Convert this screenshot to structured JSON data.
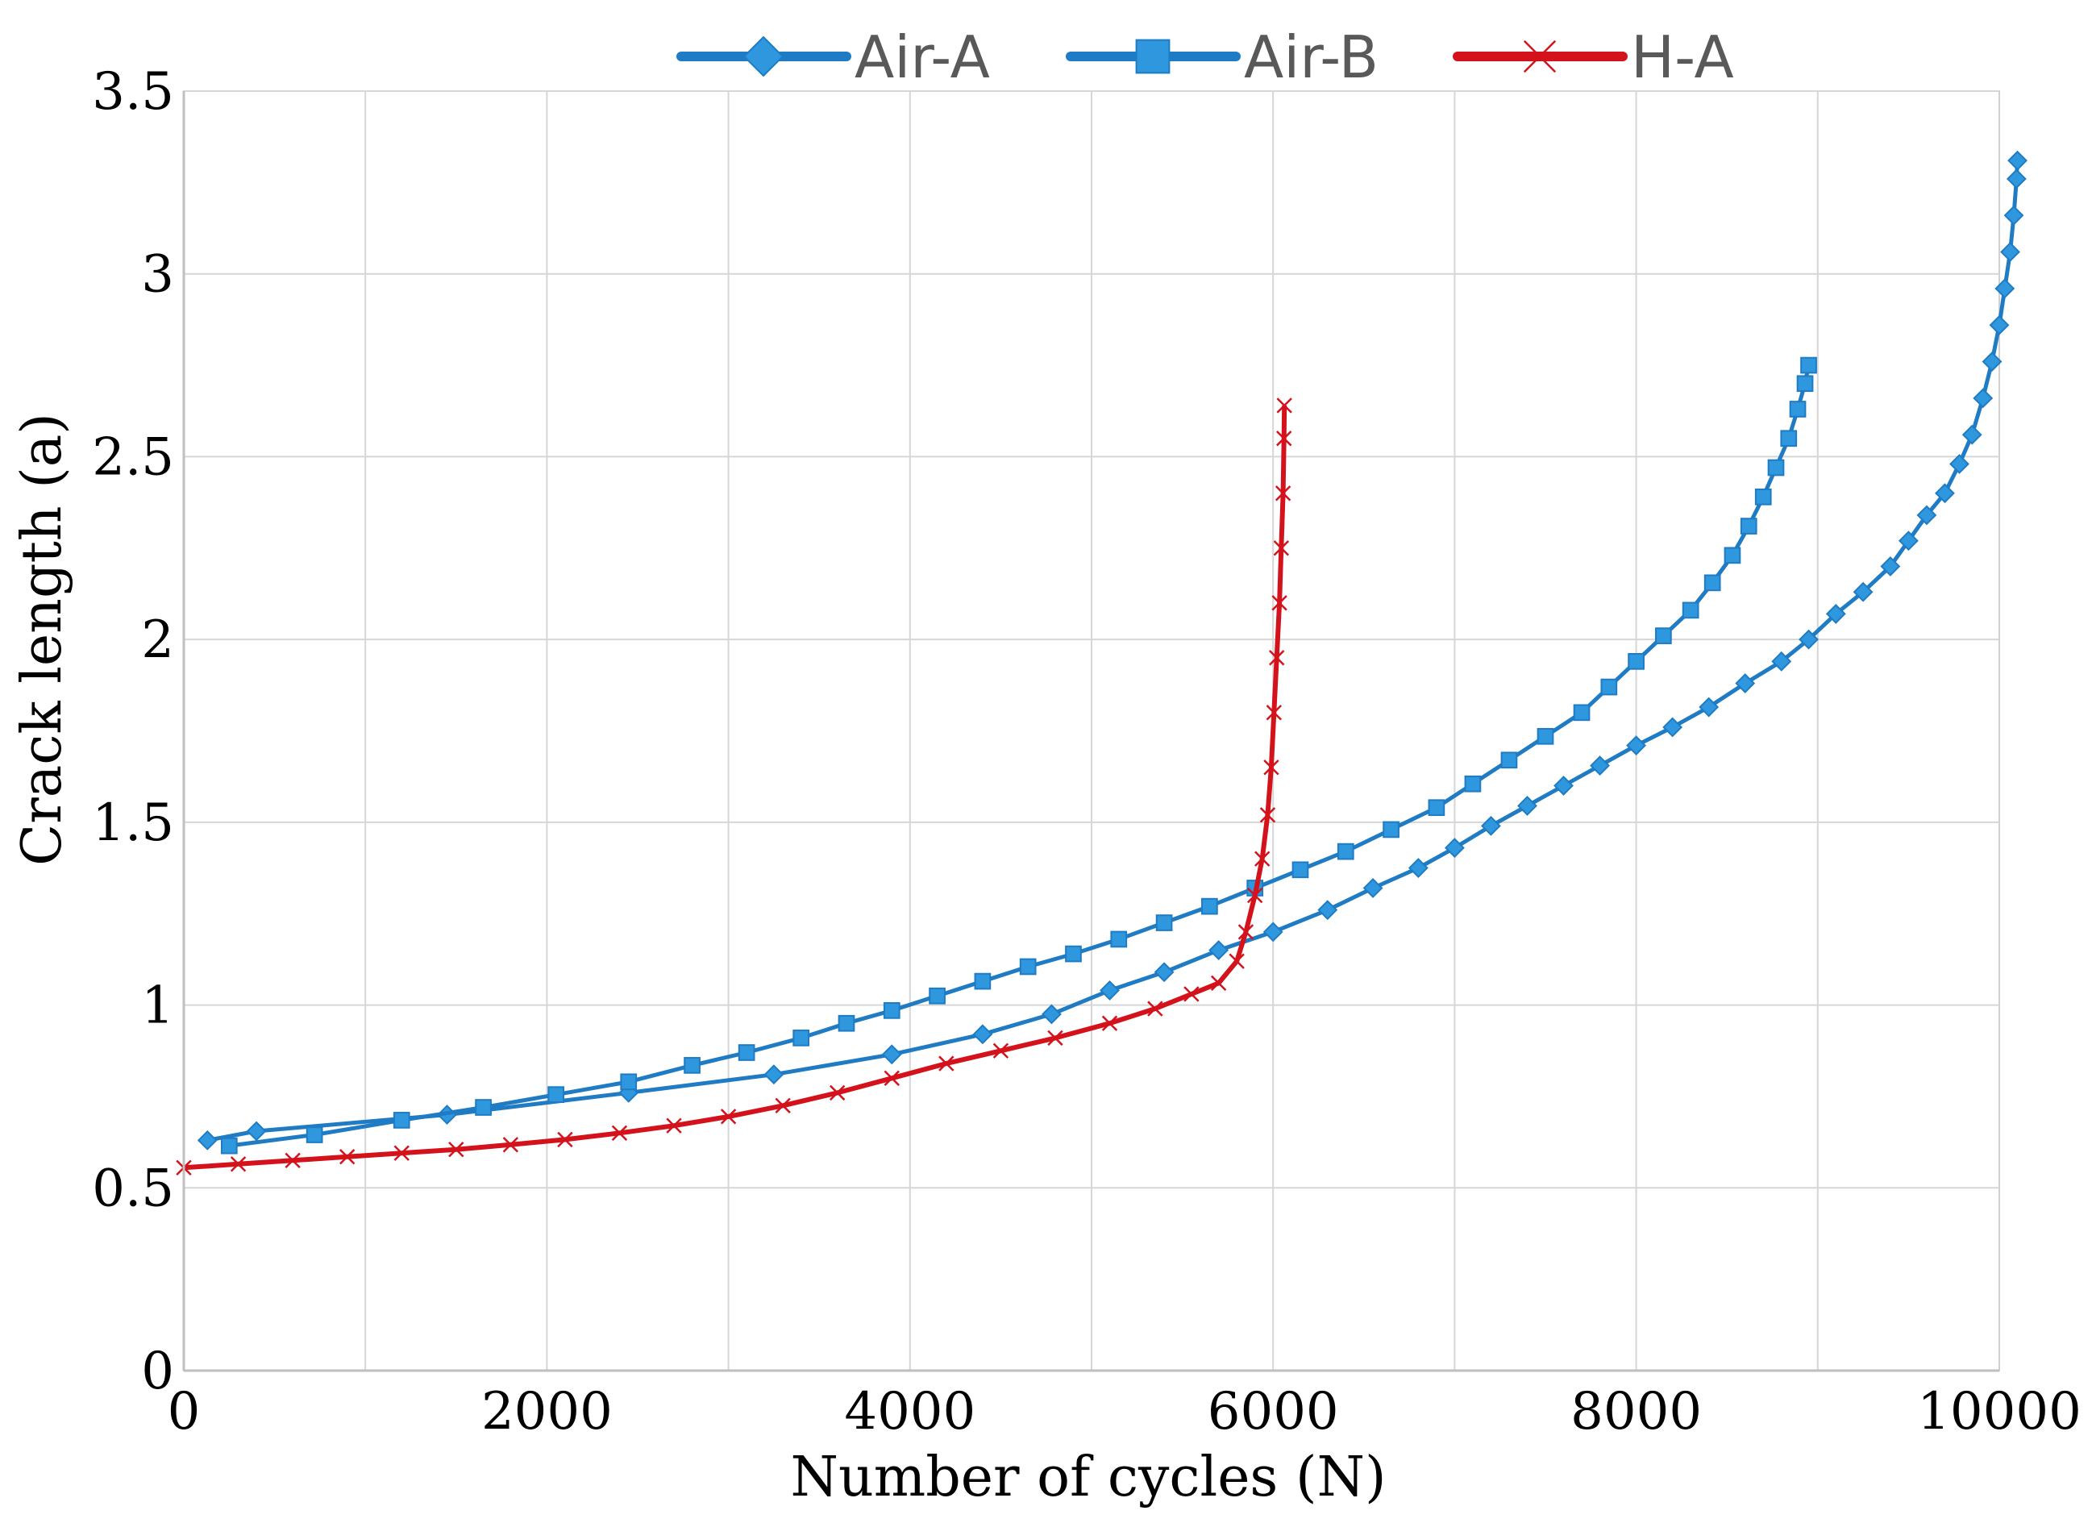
{
  "chart_data": {
    "type": "line",
    "title": "",
    "xlabel": "Number of cycles (N)",
    "ylabel": "Crack length (a)",
    "xlim": [
      0,
      10000
    ],
    "ylim": [
      0,
      3.5
    ],
    "grid": true,
    "legend_position": "top",
    "x_ticks": [
      "0",
      "2000",
      "4000",
      "6000",
      "8000",
      "10000"
    ],
    "y_ticks": [
      "0",
      "0.5",
      "1",
      "1.5",
      "2",
      "2.5",
      "3",
      "3.5"
    ],
    "series": [
      {
        "name": "Air-A",
        "color": "#1f7cc4",
        "marker": "diamond",
        "points": [
          [
            130,
            0.63
          ],
          [
            400,
            0.655
          ],
          [
            1450,
            0.7
          ],
          [
            2450,
            0.76
          ],
          [
            3250,
            0.81
          ],
          [
            3900,
            0.865
          ],
          [
            4400,
            0.92
          ],
          [
            4780,
            0.975
          ],
          [
            5100,
            1.04
          ],
          [
            5400,
            1.09
          ],
          [
            5700,
            1.15
          ],
          [
            6000,
            1.2
          ],
          [
            6300,
            1.26
          ],
          [
            6550,
            1.32
          ],
          [
            6800,
            1.375
          ],
          [
            7000,
            1.43
          ],
          [
            7200,
            1.49
          ],
          [
            7400,
            1.545
          ],
          [
            7600,
            1.6
          ],
          [
            7800,
            1.655
          ],
          [
            8000,
            1.71
          ],
          [
            8200,
            1.76
          ],
          [
            8400,
            1.815
          ],
          [
            8600,
            1.88
          ],
          [
            8800,
            1.94
          ],
          [
            8950,
            2.0
          ],
          [
            9100,
            2.07
          ],
          [
            9250,
            2.13
          ],
          [
            9400,
            2.2
          ],
          [
            9500,
            2.27
          ],
          [
            9600,
            2.34
          ],
          [
            9700,
            2.4
          ],
          [
            9780,
            2.48
          ],
          [
            9850,
            2.56
          ],
          [
            9910,
            2.66
          ],
          [
            9960,
            2.76
          ],
          [
            10000,
            2.86
          ],
          [
            10030,
            2.96
          ],
          [
            10060,
            3.06
          ],
          [
            10080,
            3.16
          ],
          [
            10095,
            3.26
          ],
          [
            10100,
            3.31
          ]
        ]
      },
      {
        "name": "Air-B",
        "color": "#1f7cc4",
        "marker": "square",
        "points": [
          [
            250,
            0.615
          ],
          [
            720,
            0.645
          ],
          [
            1200,
            0.685
          ],
          [
            1650,
            0.72
          ],
          [
            2050,
            0.755
          ],
          [
            2450,
            0.79
          ],
          [
            2800,
            0.835
          ],
          [
            3100,
            0.87
          ],
          [
            3400,
            0.91
          ],
          [
            3650,
            0.95
          ],
          [
            3900,
            0.985
          ],
          [
            4150,
            1.025
          ],
          [
            4400,
            1.065
          ],
          [
            4650,
            1.105
          ],
          [
            4900,
            1.14
          ],
          [
            5150,
            1.18
          ],
          [
            5400,
            1.225
          ],
          [
            5650,
            1.27
          ],
          [
            5900,
            1.32
          ],
          [
            6150,
            1.37
          ],
          [
            6400,
            1.42
          ],
          [
            6650,
            1.48
          ],
          [
            6900,
            1.54
          ],
          [
            7100,
            1.605
          ],
          [
            7300,
            1.67
          ],
          [
            7500,
            1.735
          ],
          [
            7700,
            1.8
          ],
          [
            7850,
            1.87
          ],
          [
            8000,
            1.94
          ],
          [
            8150,
            2.01
          ],
          [
            8300,
            2.08
          ],
          [
            8420,
            2.155
          ],
          [
            8530,
            2.23
          ],
          [
            8620,
            2.31
          ],
          [
            8700,
            2.39
          ],
          [
            8770,
            2.47
          ],
          [
            8840,
            2.55
          ],
          [
            8890,
            2.63
          ],
          [
            8930,
            2.7
          ],
          [
            8950,
            2.75
          ]
        ]
      },
      {
        "name": "H-A",
        "color": "#d4121c",
        "marker": "x",
        "points": [
          [
            0,
            0.555
          ],
          [
            300,
            0.565
          ],
          [
            600,
            0.575
          ],
          [
            900,
            0.585
          ],
          [
            1200,
            0.595
          ],
          [
            1500,
            0.605
          ],
          [
            1800,
            0.618
          ],
          [
            2100,
            0.632
          ],
          [
            2400,
            0.65
          ],
          [
            2700,
            0.67
          ],
          [
            3000,
            0.695
          ],
          [
            3300,
            0.725
          ],
          [
            3600,
            0.76
          ],
          [
            3900,
            0.8
          ],
          [
            4200,
            0.84
          ],
          [
            4500,
            0.875
          ],
          [
            4800,
            0.91
          ],
          [
            5100,
            0.95
          ],
          [
            5350,
            0.99
          ],
          [
            5550,
            1.03
          ],
          [
            5700,
            1.06
          ],
          [
            5800,
            1.12
          ],
          [
            5850,
            1.2
          ],
          [
            5900,
            1.3
          ],
          [
            5940,
            1.4
          ],
          [
            5970,
            1.52
          ],
          [
            5990,
            1.65
          ],
          [
            6005,
            1.8
          ],
          [
            6020,
            1.95
          ],
          [
            6035,
            2.1
          ],
          [
            6045,
            2.25
          ],
          [
            6055,
            2.4
          ],
          [
            6060,
            2.55
          ],
          [
            6062,
            2.64
          ]
        ]
      }
    ]
  }
}
